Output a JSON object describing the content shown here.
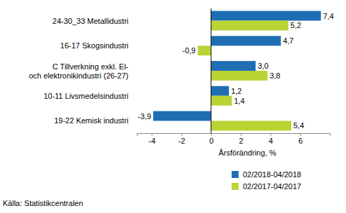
{
  "chart_data": {
    "type": "bar",
    "orientation": "horizontal",
    "categories": [
      "24-30_33 Metallidustri",
      "16-17 Skogsindustri",
      "C Tillverkning exkl. El-\noch elektronikindustri (26-27)",
      "10-11 Livsmedelsindustri",
      "19-22 Kemisk industri"
    ],
    "series": [
      {
        "name": "02/2018-04/2018",
        "color": "#1f6eb4",
        "values": [
          7.4,
          4.7,
          3.0,
          1.2,
          -3.9
        ],
        "value_labels": [
          "7,4",
          "4,7",
          "3,0",
          "1,2",
          "-3,9"
        ]
      },
      {
        "name": "02/2017-04/2017",
        "color": "#b9d433",
        "values": [
          5.2,
          -0.9,
          3.8,
          1.4,
          5.4
        ],
        "value_labels": [
          "5,2",
          "-0,9",
          "3,8",
          "1,4",
          "5,4"
        ]
      }
    ],
    "xlabel": "Årsförändring, %",
    "xlim": [
      -5,
      8
    ],
    "xticks": [
      -4,
      -2,
      0,
      2,
      4,
      6
    ],
    "grid": false,
    "data_labels": true,
    "legend": "bottom",
    "annotations": [
      "Källa: Statistikcentralen"
    ]
  }
}
